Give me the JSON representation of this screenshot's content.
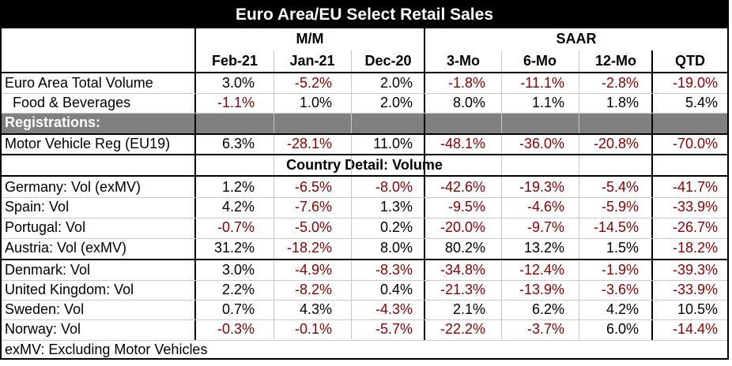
{
  "title": "Euro Area/EU Select Retail Sales",
  "group_headers": {
    "mm": "M/M",
    "saar": "SAAR"
  },
  "columns": [
    "Feb-21",
    "Jan-21",
    "Dec-20",
    "3-Mo",
    "6-Mo",
    "12-Mo",
    "QTD"
  ],
  "rows_top": [
    {
      "label": "Euro Area Total Volume",
      "values": [
        "3.0%",
        "-5.2%",
        "2.0%",
        "-1.8%",
        "-11.1%",
        "-2.8%",
        "-19.0%"
      ]
    },
    {
      "label": "  Food & Beverages",
      "values": [
        "-1.1%",
        "1.0%",
        "2.0%",
        "8.0%",
        "1.1%",
        "1.8%",
        "5.4%"
      ]
    }
  ],
  "registrations_header": "Registrations:",
  "rows_reg": [
    {
      "label": "Motor Vehicle Reg (EU19)",
      "values": [
        "6.3%",
        "-28.1%",
        "11.0%",
        "-48.1%",
        "-36.0%",
        "-20.8%",
        "-70.0%"
      ]
    }
  ],
  "country_header": "Country Detail: Volume",
  "rows_country": [
    {
      "label": "Germany: Vol (exMV)",
      "values": [
        "1.2%",
        "-6.5%",
        "-8.0%",
        "-42.6%",
        "-19.3%",
        "-5.4%",
        "-41.7%"
      ]
    },
    {
      "label": "Spain: Vol",
      "values": [
        "4.2%",
        "-7.6%",
        "1.3%",
        "-9.5%",
        "-4.6%",
        "-5.9%",
        "-33.9%"
      ]
    },
    {
      "label": "Portugal: Vol",
      "values": [
        "-0.7%",
        "-5.0%",
        "0.2%",
        "-20.0%",
        "-9.7%",
        "-14.5%",
        "-26.7%"
      ]
    },
    {
      "label": "Austria: Vol (exMV)",
      "values": [
        "31.2%",
        "-18.2%",
        "8.0%",
        "80.2%",
        "13.2%",
        "1.5%",
        "-18.2%"
      ]
    },
    {
      "label": "Denmark: Vol",
      "values": [
        "3.0%",
        "-4.9%",
        "-8.3%",
        "-34.8%",
        "-12.4%",
        "-1.9%",
        "-39.3%"
      ]
    },
    {
      "label": "United Kingdom: Vol",
      "values": [
        "2.2%",
        "-8.2%",
        "0.4%",
        "-21.3%",
        "-13.9%",
        "-3.6%",
        "-33.9%"
      ]
    },
    {
      "label": "Sweden: Vol",
      "values": [
        "0.7%",
        "4.3%",
        "-4.3%",
        "2.1%",
        "6.2%",
        "4.2%",
        "10.5%"
      ]
    },
    {
      "label": "Norway: Vol",
      "values": [
        "-0.3%",
        "-0.1%",
        "-5.7%",
        "-22.2%",
        "-3.7%",
        "6.0%",
        "-14.4%"
      ]
    }
  ],
  "footnote": "exMV: Excluding Motor Vehicles",
  "colors": {
    "negative": "#8b0000",
    "positive": "#000000",
    "band": "#808080",
    "title_bg": "#000000"
  }
}
